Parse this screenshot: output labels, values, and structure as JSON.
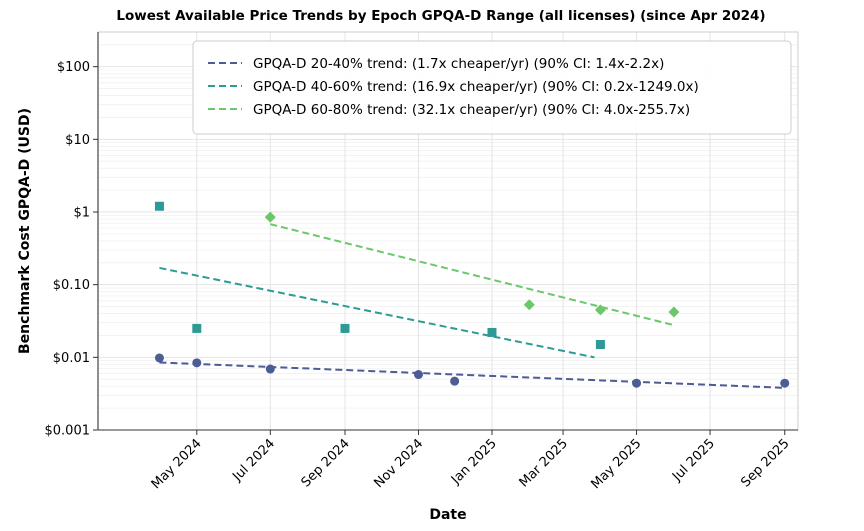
{
  "chart_data": {
    "type": "scatter",
    "title": "Lowest Available Price Trends by Epoch GPQA-D Range (all licenses) (since Apr 2024)",
    "xlabel": "Date",
    "ylabel": "Benchmark Cost GPQA-D (USD)",
    "y_scale": "log",
    "ylim": [
      0.001,
      300
    ],
    "xlim": [
      "2024-02-09",
      "2025-09-12"
    ],
    "grid": true,
    "legend_position": "top-right",
    "y_ticks": [
      {
        "value": 0.001,
        "label": "$0.001"
      },
      {
        "value": 0.01,
        "label": "$0.01"
      },
      {
        "value": 0.1,
        "label": "$0.10"
      },
      {
        "value": 1,
        "label": "$1"
      },
      {
        "value": 10,
        "label": "$10"
      },
      {
        "value": 100,
        "label": "$100"
      }
    ],
    "x_ticks": [
      {
        "value": "2024-05-01",
        "label": "May 2024"
      },
      {
        "value": "2024-07-01",
        "label": "Jul 2024"
      },
      {
        "value": "2024-09-01",
        "label": "Sep 2024"
      },
      {
        "value": "2024-11-01",
        "label": "Nov 2024"
      },
      {
        "value": "2025-01-01",
        "label": "Jan 2025"
      },
      {
        "value": "2025-03-01",
        "label": "Mar 2025"
      },
      {
        "value": "2025-05-01",
        "label": "May 2025"
      },
      {
        "value": "2025-07-01",
        "label": "Jul 2025"
      },
      {
        "value": "2025-09-01",
        "label": "Sep 2025"
      }
    ],
    "series": [
      {
        "name": "GPQA-D 20-40% trend: (1.7x cheaper/yr) (90% CI: 1.4x-2.2x)",
        "color": "#4c5c94",
        "marker": "circle",
        "points": [
          {
            "x": "2024-03-31",
            "y": 0.0098
          },
          {
            "x": "2024-05-01",
            "y": 0.0084
          },
          {
            "x": "2024-07-01",
            "y": 0.0069
          },
          {
            "x": "2024-11-01",
            "y": 0.0058
          },
          {
            "x": "2024-12-01",
            "y": 0.0047
          },
          {
            "x": "2025-05-01",
            "y": 0.0044
          },
          {
            "x": "2025-09-01",
            "y": 0.0044
          }
        ],
        "trend": [
          {
            "x": "2024-03-31",
            "y": 0.0085
          },
          {
            "x": "2025-09-01",
            "y": 0.0038
          }
        ]
      },
      {
        "name": "GPQA-D 40-60% trend: (16.9x cheaper/yr) (90% CI: 0.2x-1249.0x)",
        "color": "#2e9a96",
        "marker": "square",
        "points": [
          {
            "x": "2024-03-31",
            "y": 1.2
          },
          {
            "x": "2024-05-01",
            "y": 0.025
          },
          {
            "x": "2024-09-01",
            "y": 0.025
          },
          {
            "x": "2025-01-01",
            "y": 0.022
          },
          {
            "x": "2025-04-01",
            "y": 0.015
          }
        ],
        "trend": [
          {
            "x": "2024-03-31",
            "y": 0.17
          },
          {
            "x": "2025-03-27",
            "y": 0.01
          }
        ]
      },
      {
        "name": "GPQA-D 60-80% trend: (32.1x cheaper/yr) (90% CI: 4.0x-255.7x)",
        "color": "#6cc76c",
        "marker": "diamond",
        "points": [
          {
            "x": "2024-07-01",
            "y": 0.85
          },
          {
            "x": "2025-02-01",
            "y": 0.053
          },
          {
            "x": "2025-04-01",
            "y": 0.045
          },
          {
            "x": "2025-06-01",
            "y": 0.042
          }
        ],
        "trend": [
          {
            "x": "2024-07-01",
            "y": 0.68
          },
          {
            "x": "2025-05-31",
            "y": 0.028
          }
        ]
      }
    ]
  }
}
